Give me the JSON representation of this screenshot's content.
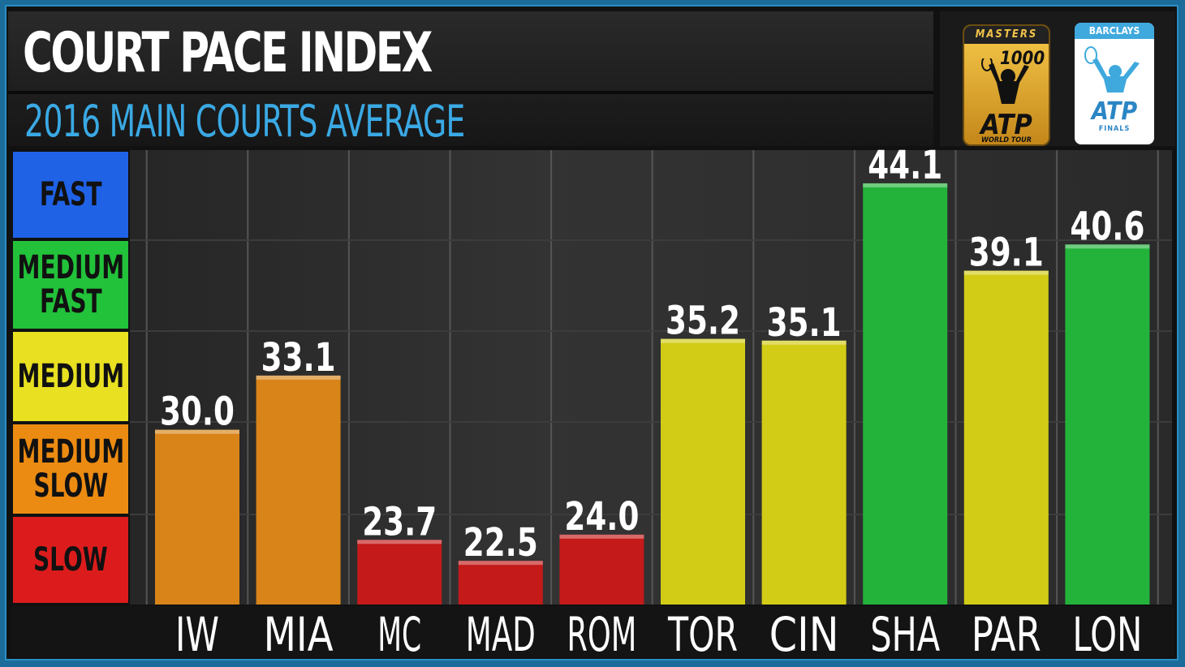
{
  "header": {
    "title": "COURT PACE INDEX",
    "subtitle": "2016 MAIN COURTS AVERAGE"
  },
  "logos": {
    "masters": {
      "tag": "MASTERS",
      "number": "1000",
      "brand": "ATP",
      "sub": "WORLD TOUR"
    },
    "finals": {
      "tag": "BARCLAYS",
      "brand": "ATP",
      "sub": "FINALS"
    }
  },
  "legend": [
    {
      "label": "FAST",
      "color": "#1f62e6"
    },
    {
      "label": "MEDIUM\nFAST",
      "color": "#22c23a"
    },
    {
      "label": "MEDIUM",
      "color": "#e8e021"
    },
    {
      "label": "MEDIUM\nSLOW",
      "color": "#ec8b12"
    },
    {
      "label": "SLOW",
      "color": "#dc1c1c"
    }
  ],
  "chart_data": {
    "type": "bar",
    "title": "COURT PACE INDEX",
    "subtitle": "2016 MAIN COURTS AVERAGE",
    "categories": [
      "IW",
      "MIA",
      "MC",
      "MAD",
      "ROM",
      "TOR",
      "CIN",
      "SHA",
      "PAR",
      "LON"
    ],
    "values": [
      30.0,
      33.1,
      23.7,
      22.5,
      24.0,
      35.2,
      35.1,
      44.1,
      39.1,
      40.6
    ],
    "value_labels": [
      "30.0",
      "33.1",
      "23.7",
      "22.5",
      "24.0",
      "35.2",
      "35.1",
      "44.1",
      "39.1",
      "40.6"
    ],
    "bar_colors": [
      "#d88419",
      "#d88419",
      "#c41a1a",
      "#c41a1a",
      "#c41a1a",
      "#d2cc16",
      "#d2cc16",
      "#23b33b",
      "#d2cc16",
      "#23b33b"
    ],
    "xlabel": "",
    "ylabel": "",
    "ylim": [
      20,
      46
    ],
    "grid": true
  }
}
